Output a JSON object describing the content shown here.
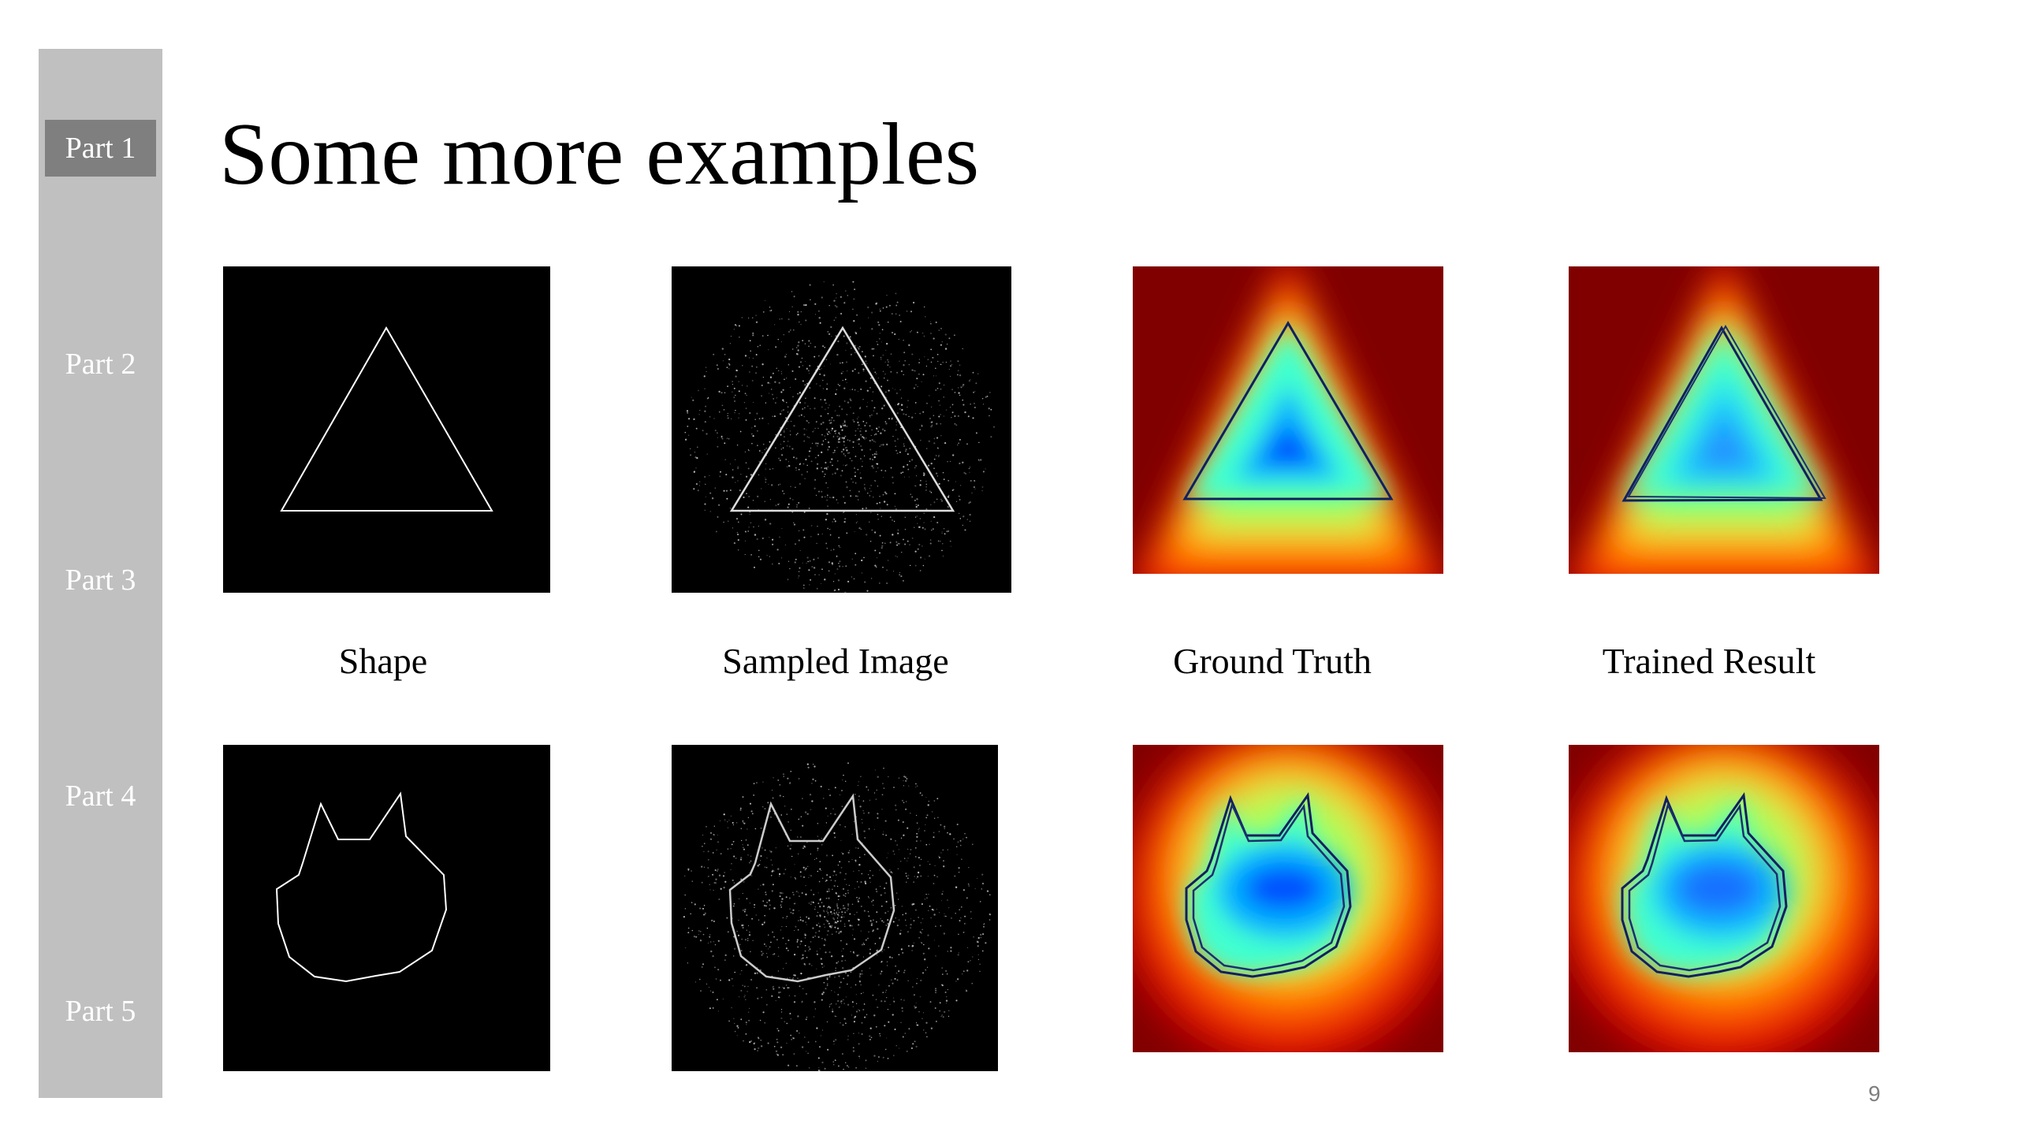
{
  "sidebar": {
    "items": [
      {
        "label": "Part 1",
        "active": true
      },
      {
        "label": "Part 2",
        "active": false
      },
      {
        "label": "Part 3",
        "active": false
      },
      {
        "label": "Part 4",
        "active": false
      },
      {
        "label": "Part 5",
        "active": false
      }
    ]
  },
  "slide": {
    "title": "Some more examples",
    "page_number": "9"
  },
  "columns": [
    {
      "caption": "Shape"
    },
    {
      "caption": "Sampled Image"
    },
    {
      "caption": "Ground Truth"
    },
    {
      "caption": "Trained Result"
    }
  ],
  "rows": [
    {
      "shape": "triangle"
    },
    {
      "shape": "cat-head"
    }
  ],
  "colors": {
    "sidebar": "#c0c0c0",
    "sidebar_active": "#7f7f7f",
    "heatmap_outer": "#800000",
    "heatmap_inner": "#0050ff"
  }
}
